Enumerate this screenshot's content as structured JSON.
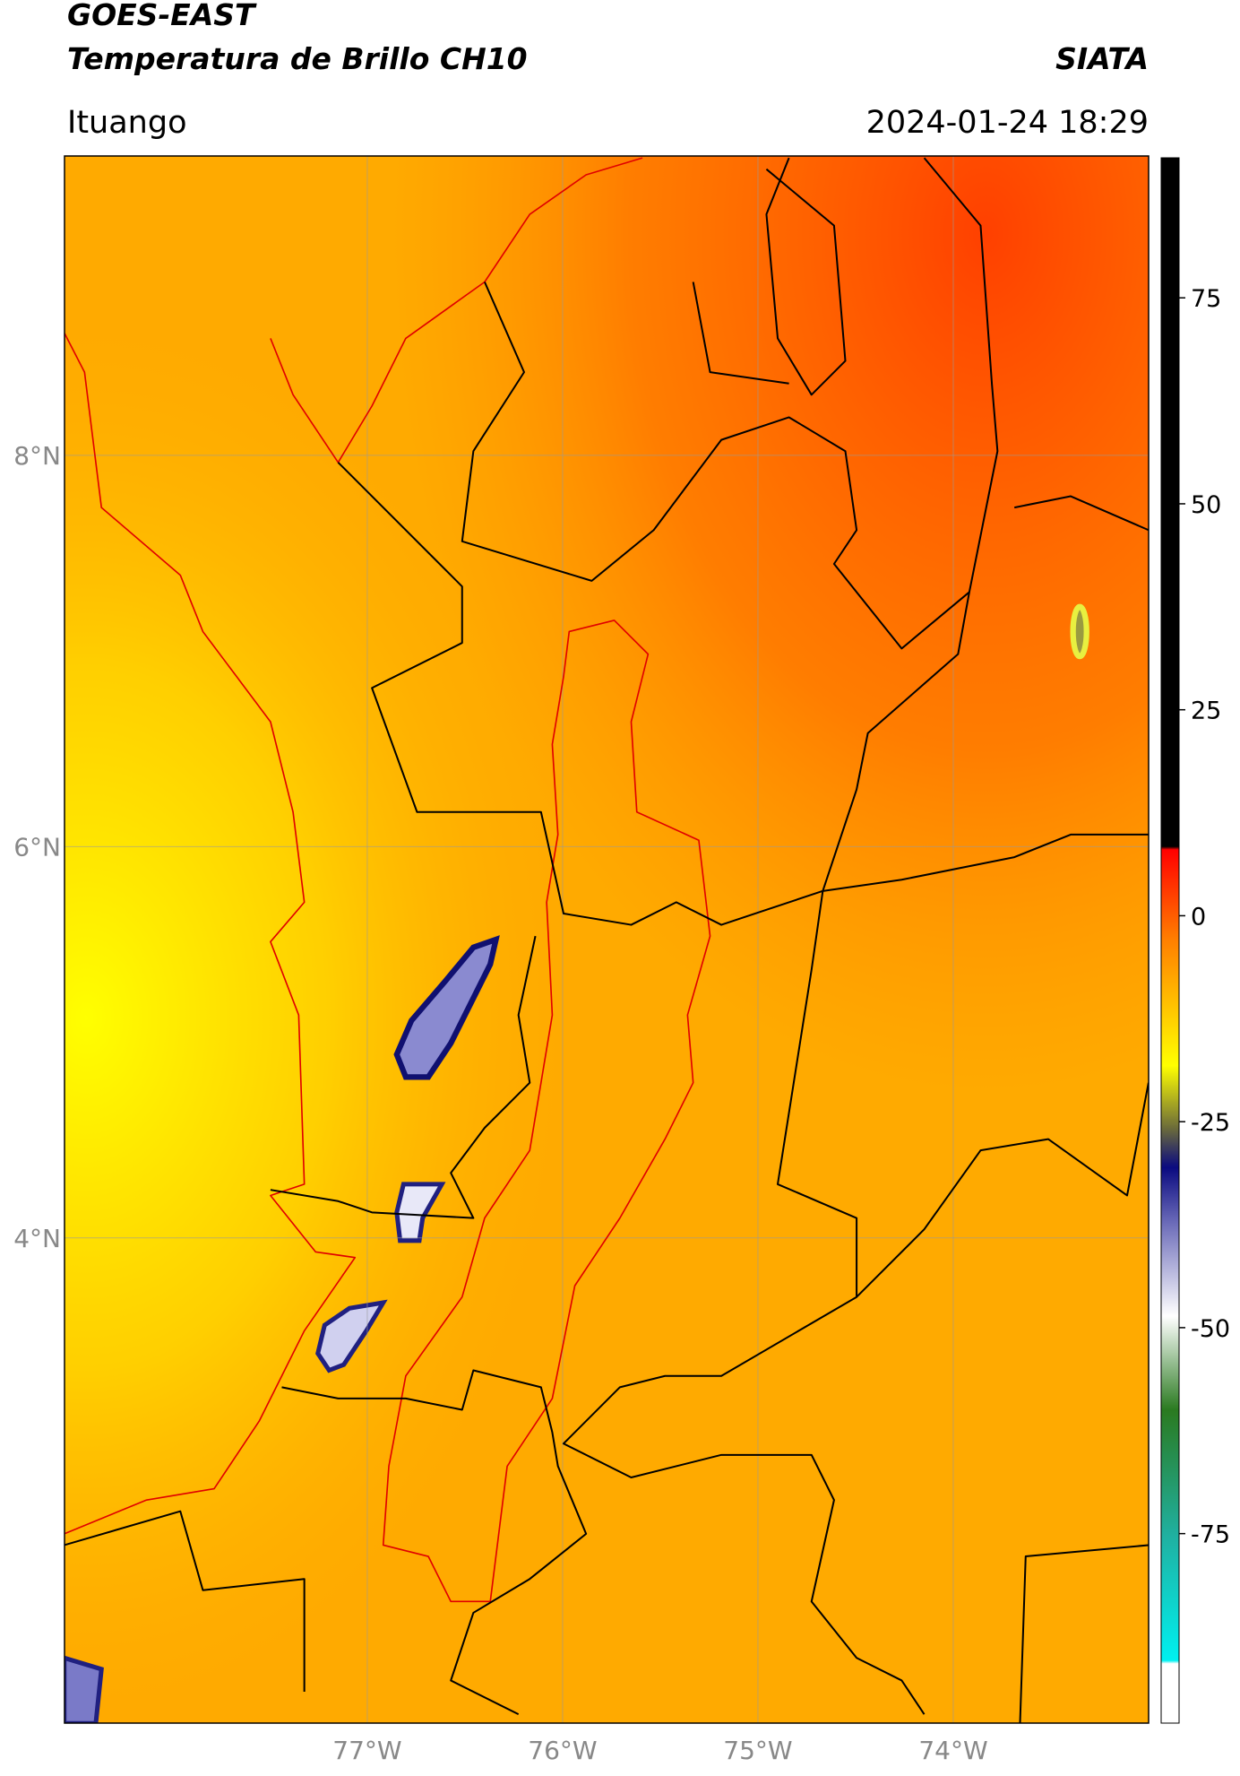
{
  "header": {
    "title": "GOES-EAST",
    "subtitle": "Temperatura de Brillo CH10",
    "source": "SIATA",
    "location": "Ituango",
    "datetime": "2024-01-24 18:29"
  },
  "map": {
    "lonlim": [
      -78.55,
      -73.0
    ],
    "latlim": [
      1.52,
      9.53
    ],
    "lat_ticks": [
      {
        "value": 8,
        "label": "8°N"
      },
      {
        "value": 6,
        "label": "6°N"
      },
      {
        "value": 4,
        "label": "4°N"
      }
    ],
    "lon_ticks": [
      {
        "value": -77,
        "label": "77°W"
      },
      {
        "value": -76,
        "label": "76°W"
      },
      {
        "value": -75,
        "label": "75°W"
      },
      {
        "value": -74,
        "label": "74°W"
      }
    ],
    "grid": true
  },
  "colorbar": {
    "lim": [
      -98,
      92
    ],
    "ticks": [
      75,
      50,
      25,
      0,
      -25,
      -50,
      -75
    ]
  }
}
